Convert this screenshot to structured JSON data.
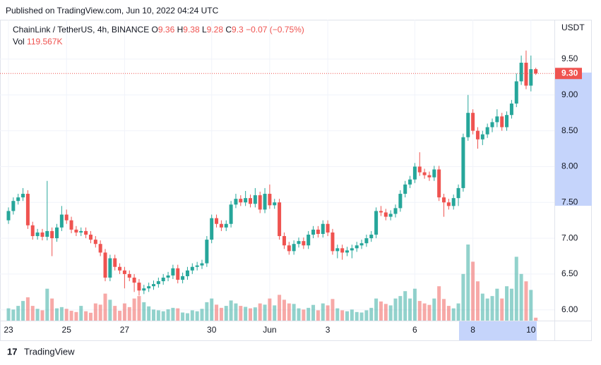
{
  "chart_data": {
    "type": "candlestick",
    "published": "Published on TradingView.com, Jun 10, 2022 04:24 UTC",
    "symbol": "ChainLink / TetherUS, 4h, BINANCE",
    "legend": {
      "open": {
        "label": "O",
        "value": 9.36
      },
      "high": {
        "label": "H",
        "value": 9.38
      },
      "low": {
        "label": "L",
        "value": 9.28
      },
      "close": {
        "label": "C",
        "value": 9.3
      },
      "change": "−0.07 (−0.75%)"
    },
    "volume_legend": {
      "label": "Vol",
      "value": "119.567K"
    },
    "currency": "USDT",
    "footer": "TradingView",
    "up_color": "#26a69a",
    "down_color": "#ef5350",
    "grid": true,
    "ylim": [
      5.85,
      10.05
    ],
    "yticks": [
      {
        "value": 6,
        "label": "6.00"
      },
      {
        "value": 6.5,
        "label": "6.50"
      },
      {
        "value": 7,
        "label": "7.00"
      },
      {
        "value": 7.5,
        "label": "7.50"
      },
      {
        "value": 8,
        "label": "8.00"
      },
      {
        "value": 8.5,
        "label": "8.50"
      },
      {
        "value": 9,
        "label": "9.00"
      },
      {
        "value": 9.5,
        "label": "9.50"
      }
    ],
    "last_price_label": "9.30",
    "categories": [
      "23",
      null,
      null,
      null,
      null,
      null,
      null,
      null,
      null,
      null,
      null,
      null,
      "25",
      null,
      null,
      null,
      null,
      null,
      null,
      null,
      null,
      null,
      null,
      null,
      "27",
      null,
      null,
      null,
      null,
      null,
      null,
      null,
      null,
      null,
      null,
      null,
      null,
      null,
      null,
      null,
      null,
      null,
      "30",
      null,
      null,
      null,
      null,
      null,
      null,
      null,
      null,
      null,
      null,
      null,
      "Jun",
      null,
      null,
      null,
      null,
      null,
      null,
      null,
      null,
      null,
      null,
      null,
      "3",
      null,
      null,
      null,
      null,
      null,
      null,
      null,
      null,
      null,
      null,
      null,
      null,
      null,
      null,
      null,
      null,
      null,
      "6",
      null,
      null,
      null,
      null,
      null,
      null,
      null,
      null,
      null,
      null,
      null,
      "8",
      null,
      null,
      null,
      null,
      null,
      null,
      null,
      null,
      null,
      null,
      null,
      "10",
      null
    ],
    "ohlc": [
      [
        7.25,
        7.43,
        7.2,
        7.38
      ],
      [
        7.38,
        7.57,
        7.33,
        7.52
      ],
      [
        7.52,
        7.62,
        7.47,
        7.57
      ],
      [
        7.57,
        7.7,
        7.52,
        7.62
      ],
      [
        7.62,
        7.67,
        7.13,
        7.18
      ],
      [
        7.18,
        7.23,
        6.98,
        7.03
      ],
      [
        7.03,
        7.13,
        6.98,
        7.08
      ],
      [
        7.08,
        7.13,
        6.97,
        7.02
      ],
      [
        7.02,
        7.8,
        6.97,
        7.1
      ],
      [
        7.1,
        7.15,
        6.75,
        7.0
      ],
      [
        7.0,
        7.2,
        6.95,
        7.15
      ],
      [
        7.15,
        7.45,
        7.1,
        7.33
      ],
      [
        7.33,
        7.4,
        7.2,
        7.25
      ],
      [
        7.25,
        7.3,
        7.07,
        7.12
      ],
      [
        7.12,
        7.17,
        7.03,
        7.08
      ],
      [
        7.08,
        7.15,
        7.03,
        7.1
      ],
      [
        7.1,
        7.15,
        7.0,
        7.05
      ],
      [
        7.05,
        7.1,
        6.93,
        6.98
      ],
      [
        6.98,
        7.03,
        6.87,
        6.92
      ],
      [
        6.92,
        6.97,
        6.75,
        6.8
      ],
      [
        6.8,
        6.85,
        6.4,
        6.45
      ],
      [
        6.45,
        6.77,
        6.4,
        6.72
      ],
      [
        6.72,
        6.77,
        6.55,
        6.6
      ],
      [
        6.6,
        6.65,
        6.5,
        6.55
      ],
      [
        6.55,
        6.6,
        6.3,
        6.5
      ],
      [
        6.5,
        6.55,
        6.4,
        6.45
      ],
      [
        6.45,
        6.5,
        6.25,
        6.38
      ],
      [
        6.38,
        6.43,
        6.2,
        6.27
      ],
      [
        6.27,
        6.35,
        6.22,
        6.3
      ],
      [
        6.3,
        6.38,
        6.25,
        6.33
      ],
      [
        6.33,
        6.41,
        6.28,
        6.36
      ],
      [
        6.36,
        6.45,
        6.31,
        6.4
      ],
      [
        6.4,
        6.5,
        6.35,
        6.45
      ],
      [
        6.45,
        6.53,
        6.4,
        6.48
      ],
      [
        6.48,
        6.63,
        6.43,
        6.58
      ],
      [
        6.58,
        6.63,
        6.37,
        6.42
      ],
      [
        6.42,
        6.52,
        6.37,
        6.47
      ],
      [
        6.47,
        6.6,
        6.42,
        6.55
      ],
      [
        6.55,
        6.65,
        6.5,
        6.6
      ],
      [
        6.6,
        6.67,
        6.55,
        6.62
      ],
      [
        6.62,
        6.7,
        6.57,
        6.65
      ],
      [
        6.65,
        7.03,
        6.6,
        6.98
      ],
      [
        6.98,
        7.33,
        6.93,
        7.28
      ],
      [
        7.28,
        7.33,
        7.15,
        7.2
      ],
      [
        7.2,
        7.25,
        7.1,
        7.15
      ],
      [
        7.15,
        7.25,
        7.1,
        7.2
      ],
      [
        7.2,
        7.52,
        7.15,
        7.47
      ],
      [
        7.47,
        7.62,
        7.42,
        7.55
      ],
      [
        7.55,
        7.6,
        7.45,
        7.5
      ],
      [
        7.5,
        7.66,
        7.45,
        7.56
      ],
      [
        7.56,
        7.61,
        7.43,
        7.48
      ],
      [
        7.48,
        7.7,
        7.43,
        7.6
      ],
      [
        7.6,
        7.65,
        7.35,
        7.4
      ],
      [
        7.4,
        7.7,
        7.35,
        7.62
      ],
      [
        7.62,
        7.75,
        7.41,
        7.46
      ],
      [
        7.46,
        7.55,
        7.41,
        7.5
      ],
      [
        7.5,
        7.55,
        6.98,
        7.03
      ],
      [
        7.03,
        7.08,
        6.85,
        6.9
      ],
      [
        6.9,
        6.95,
        6.77,
        6.82
      ],
      [
        6.82,
        6.97,
        6.77,
        6.92
      ],
      [
        6.92,
        7.01,
        6.87,
        6.96
      ],
      [
        6.96,
        7.01,
        6.85,
        6.9
      ],
      [
        6.9,
        7.1,
        6.85,
        7.05
      ],
      [
        7.05,
        7.17,
        7.0,
        7.12
      ],
      [
        7.12,
        7.17,
        7.01,
        7.06
      ],
      [
        7.06,
        7.25,
        7.01,
        7.2
      ],
      [
        7.2,
        7.25,
        7.03,
        7.08
      ],
      [
        7.08,
        7.13,
        6.77,
        6.82
      ],
      [
        6.82,
        6.91,
        6.72,
        6.86
      ],
      [
        6.86,
        6.91,
        6.7,
        6.8
      ],
      [
        6.8,
        6.88,
        6.75,
        6.83
      ],
      [
        6.83,
        6.91,
        6.72,
        6.86
      ],
      [
        6.86,
        6.95,
        6.81,
        6.9
      ],
      [
        6.9,
        6.98,
        6.85,
        6.93
      ],
      [
        6.93,
        7.05,
        6.88,
        7.0
      ],
      [
        7.0,
        7.1,
        6.95,
        7.05
      ],
      [
        7.05,
        7.43,
        7.0,
        7.38
      ],
      [
        7.38,
        7.45,
        7.31,
        7.36
      ],
      [
        7.36,
        7.41,
        7.25,
        7.3
      ],
      [
        7.3,
        7.39,
        7.25,
        7.34
      ],
      [
        7.34,
        7.47,
        7.29,
        7.42
      ],
      [
        7.42,
        7.67,
        7.37,
        7.62
      ],
      [
        7.62,
        7.8,
        7.57,
        7.75
      ],
      [
        7.75,
        7.87,
        7.7,
        7.82
      ],
      [
        7.82,
        8.05,
        7.77,
        8.0
      ],
      [
        8.0,
        8.2,
        7.87,
        7.92
      ],
      [
        7.92,
        7.97,
        7.83,
        7.88
      ],
      [
        7.88,
        7.93,
        7.8,
        7.85
      ],
      [
        7.85,
        8.01,
        7.8,
        7.96
      ],
      [
        7.96,
        8.01,
        7.52,
        7.57
      ],
      [
        7.57,
        7.62,
        7.3,
        7.5
      ],
      [
        7.5,
        7.55,
        7.4,
        7.45
      ],
      [
        7.45,
        7.61,
        7.4,
        7.56
      ],
      [
        7.56,
        7.75,
        7.45,
        7.7
      ],
      [
        7.7,
        8.46,
        7.65,
        8.41
      ],
      [
        8.41,
        9.0,
        8.36,
        8.75
      ],
      [
        8.75,
        8.8,
        8.45,
        8.5
      ],
      [
        8.5,
        8.55,
        8.25,
        8.38
      ],
      [
        8.38,
        8.5,
        8.3,
        8.45
      ],
      [
        8.45,
        8.6,
        8.4,
        8.55
      ],
      [
        8.55,
        8.67,
        8.48,
        8.62
      ],
      [
        8.62,
        8.8,
        8.55,
        8.7
      ],
      [
        8.7,
        8.75,
        8.5,
        8.55
      ],
      [
        8.55,
        8.77,
        8.5,
        8.72
      ],
      [
        8.72,
        8.93,
        8.67,
        8.88
      ],
      [
        8.88,
        9.3,
        8.83,
        9.19
      ],
      [
        9.19,
        9.55,
        9.14,
        9.45
      ],
      [
        9.45,
        9.62,
        9.08,
        9.13
      ],
      [
        9.13,
        9.55,
        9.05,
        9.36
      ],
      [
        9.36,
        9.38,
        9.28,
        9.3
      ]
    ],
    "volume": [
      500,
      450,
      600,
      800,
      950,
      600,
      480,
      420,
      1300,
      900,
      500,
      550,
      480,
      400,
      350,
      600,
      380,
      320,
      700,
      650,
      1100,
      850,
      600,
      400,
      700,
      550,
      900,
      1000,
      750,
      580,
      450,
      420,
      380,
      460,
      520,
      500,
      330,
      300,
      420,
      380,
      480,
      750,
      900,
      650,
      520,
      600,
      820,
      700,
      600,
      560,
      500,
      540,
      700,
      650,
      900,
      620,
      1050,
      850,
      700,
      680,
      500,
      450,
      520,
      640,
      420,
      700,
      620,
      880,
      500,
      420,
      380,
      450,
      350,
      330,
      420,
      520,
      900,
      780,
      680,
      620,
      900,
      1000,
      1200,
      900,
      1300,
      800,
      700,
      640,
      900,
      1400,
      880,
      600,
      500,
      700,
      1900,
      3100,
      2400,
      1600,
      1100,
      900,
      1000,
      1300,
      900,
      1400,
      1300,
      2600,
      1900,
      1600,
      1250,
      119.567
    ]
  }
}
